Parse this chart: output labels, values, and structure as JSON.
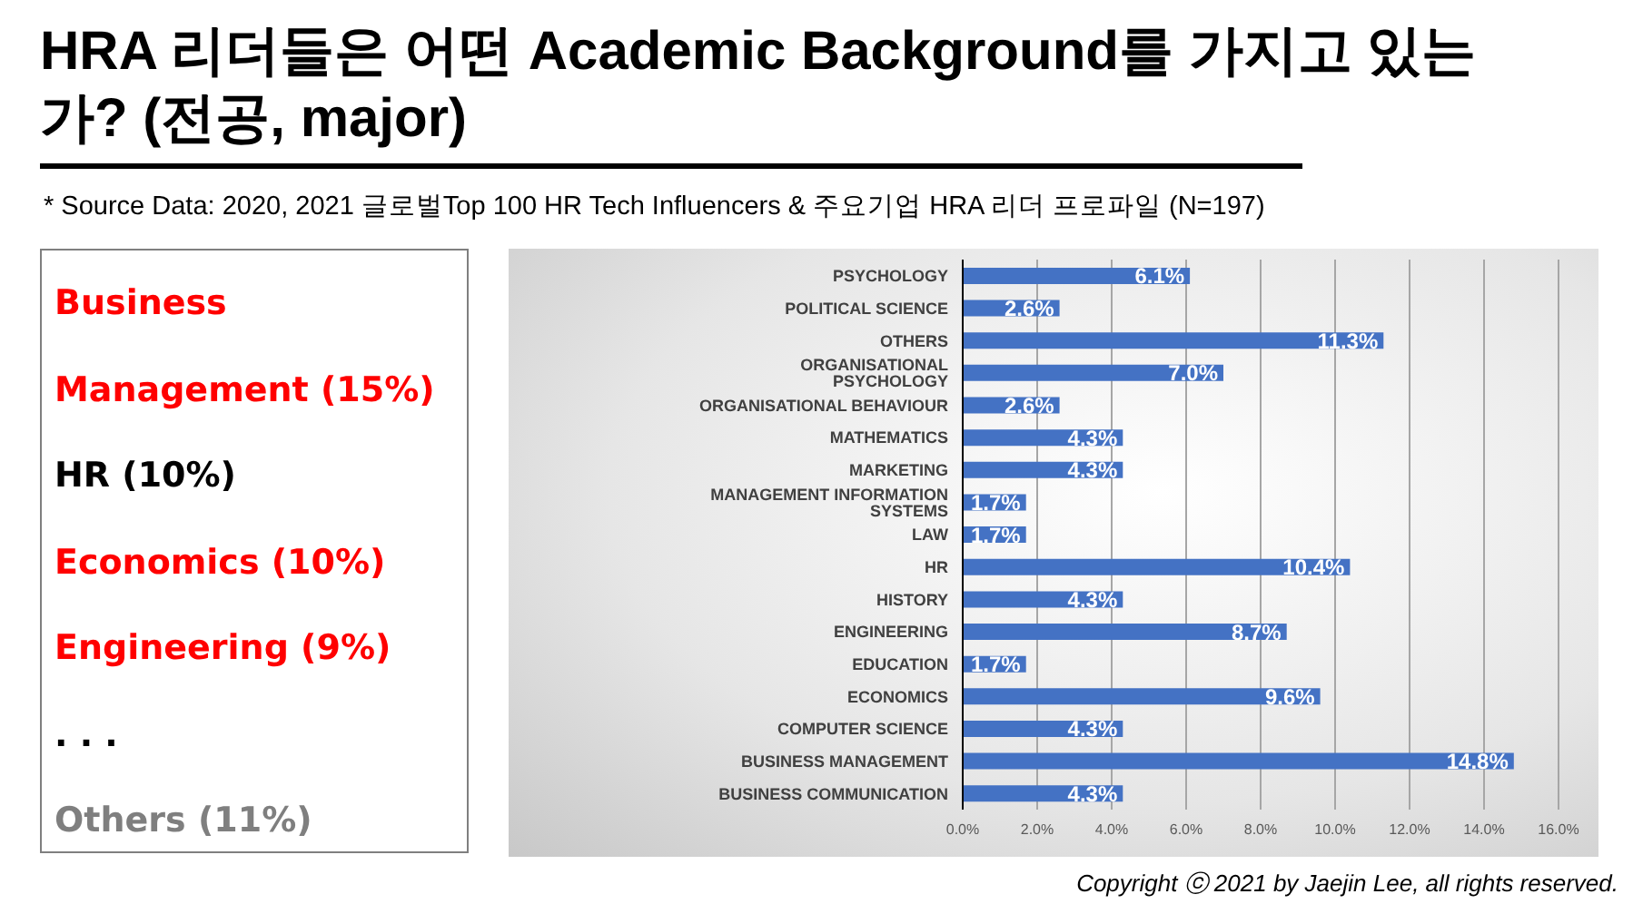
{
  "chart_data": [
    {
      "type": "other",
      "annotations": [
        "Business Management (15%)",
        "HR (10%)",
        "Economics (10%)",
        "Engineering (9%)",
        ". . .",
        "Others (11%)"
      ],
      "colors": [
        "#ff0000",
        "#000000",
        "#ff0000",
        "#ff0000",
        "#000000",
        "#7f7f7f"
      ]
    },
    {
      "type": "bar",
      "orientation": "horizontal",
      "title": "HRA 리더들은 어떤 Academic Background를 가지고 있는가? (전공, major)",
      "annotations": [
        "* Source Data: 2020, 2021 글로벌Top 100 HR Tech Influencers & 주요기업 HRA 리더 프로파일  (N=197)",
        "Copyright ⓒ 2021 by Jaejin Lee, all rights reserved."
      ],
      "categories": [
        "PSYCHOLOGY",
        "POLITICAL SCIENCE",
        "OTHERS",
        "ORGANISATIONAL PSYCHOLOGY",
        "ORGANISATIONAL BEHAVIOUR",
        "MATHEMATICS",
        "MARKETING",
        "MANAGEMENT INFORMATION SYSTEMS",
        "LAW",
        "HR",
        "HISTORY",
        "ENGINEERING",
        "EDUCATION",
        "ECONOMICS",
        "COMPUTER SCIENCE",
        "BUSINESS MANAGEMENT",
        "BUSINESS COMMUNICATION"
      ],
      "values": [
        6.1,
        2.6,
        11.3,
        7.0,
        2.6,
        4.3,
        4.3,
        1.7,
        1.7,
        10.4,
        4.3,
        8.7,
        1.7,
        9.6,
        4.3,
        14.8,
        4.3
      ],
      "value_labels": [
        "6.1%",
        "2.6%",
        "11.3%",
        "7.0%",
        "2.6%",
        "4.3%",
        "4.3%",
        "1.7%",
        "1.7%",
        "10.4%",
        "4.3%",
        "8.7%",
        "1.7%",
        "9.6%",
        "4.3%",
        "14.8%",
        "4.3%"
      ],
      "color": "#4472c4",
      "xlim": [
        0,
        16
      ],
      "xticks": [
        {
          "value": 0,
          "label": "0.0%"
        },
        {
          "value": 2,
          "label": "2.0%"
        },
        {
          "value": 4,
          "label": "4.0%"
        },
        {
          "value": 6,
          "label": "6.0%"
        },
        {
          "value": 8,
          "label": "8.0%"
        },
        {
          "value": 10,
          "label": "10.0%"
        },
        {
          "value": 12,
          "label": "12.0%"
        },
        {
          "value": 14,
          "label": "14.0%"
        },
        {
          "value": 16,
          "label": "16.0%"
        }
      ],
      "grid": "x",
      "legend": false
    }
  ]
}
